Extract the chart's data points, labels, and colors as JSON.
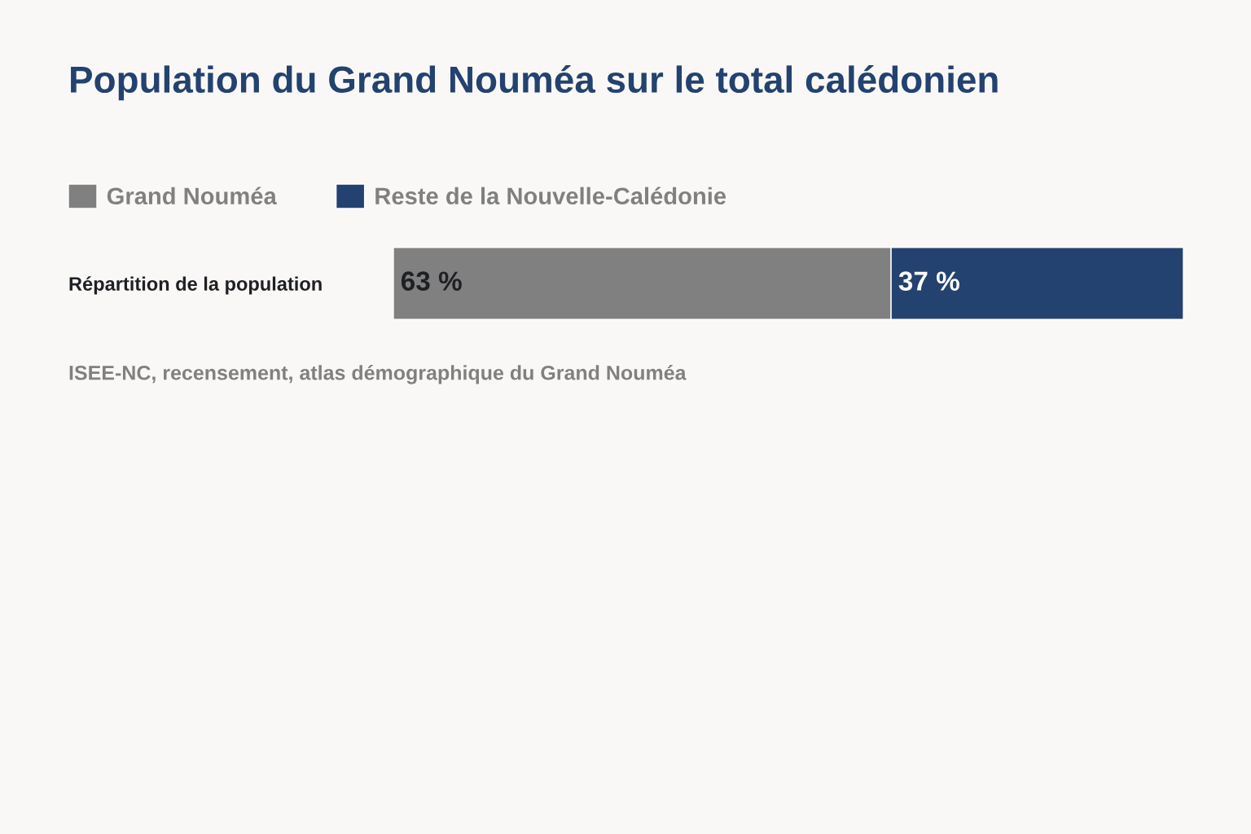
{
  "chart_data": {
    "type": "bar",
    "orientation": "horizontal",
    "stacked": true,
    "title": "Population du Grand Nouméa sur le total calédonien",
    "categories": [
      "Répartition de la population"
    ],
    "series": [
      {
        "name": "Grand Nouméa",
        "color": "#808080",
        "values": [
          63
        ],
        "value_labels": [
          "63 %"
        ]
      },
      {
        "name": "Reste de la Nouvelle-Calédonie",
        "color": "#23426f",
        "values": [
          37
        ],
        "value_labels": [
          "37 %"
        ]
      }
    ],
    "xlim": [
      0,
      100
    ],
    "tick_labels": "y",
    "legend": "top left",
    "annotations": [
      "ISEE-NC, recensement, atlas démographique du Grand Nouméa"
    ]
  }
}
